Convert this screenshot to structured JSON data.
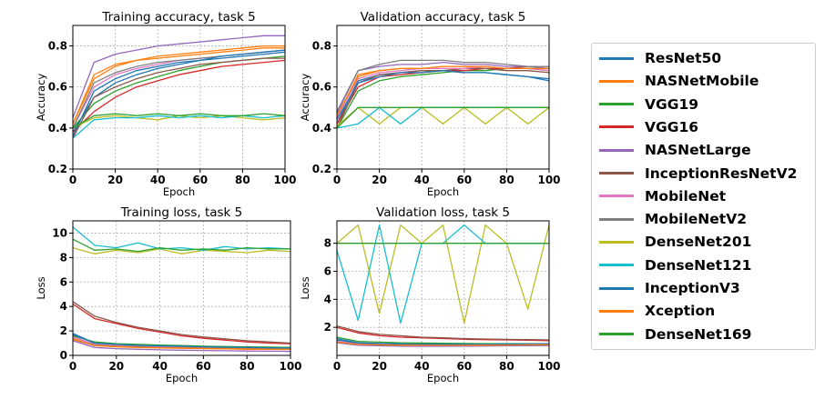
{
  "figure": {
    "colors": {
      "ResNet50": "#1f77b4",
      "NASNetMobile": "#ff7f0e",
      "VGG19": "#2ca02c",
      "VGG16": "#d62728",
      "NASNetLarge": "#9467bd",
      "InceptionResNetV2": "#8c564b",
      "MobileNet": "#e377c2",
      "MobileNetV2": "#7f7f7f",
      "DenseNet201": "#bcbd22",
      "DenseNet121": "#17becf",
      "InceptionV3": "#1f77b4",
      "Xception": "#ff7f0e",
      "DenseNet169": "#2ca02c"
    }
  },
  "legend": {
    "entries": [
      "ResNet50",
      "NASNetMobile",
      "VGG19",
      "VGG16",
      "NASNetLarge",
      "InceptionResNetV2",
      "MobileNet",
      "MobileNetV2",
      "DenseNet201",
      "DenseNet121",
      "InceptionV3",
      "Xception",
      "DenseNet169"
    ]
  },
  "chart_data": [
    {
      "type": "line",
      "title": "Training accuracy, task 5",
      "xlabel": "Epoch",
      "ylabel": "Accuracy",
      "xlim": [
        0,
        100
      ],
      "ylim": [
        0.2,
        0.9
      ],
      "xticks": [
        0,
        20,
        40,
        60,
        80,
        100
      ],
      "yticks": [
        0.2,
        0.4,
        0.6,
        0.8
      ],
      "grid": true,
      "x": [
        0,
        10,
        20,
        30,
        40,
        50,
        60,
        70,
        80,
        90,
        100
      ],
      "series": [
        {
          "name": "ResNet50",
          "values": [
            0.38,
            0.55,
            0.62,
            0.66,
            0.69,
            0.71,
            0.73,
            0.74,
            0.75,
            0.76,
            0.77
          ]
        },
        {
          "name": "NASNetMobile",
          "values": [
            0.42,
            0.64,
            0.7,
            0.73,
            0.75,
            0.76,
            0.77,
            0.78,
            0.79,
            0.8,
            0.8
          ]
        },
        {
          "name": "VGG19",
          "values": [
            0.4,
            0.52,
            0.58,
            0.62,
            0.65,
            0.68,
            0.7,
            0.72,
            0.73,
            0.74,
            0.75
          ]
        },
        {
          "name": "VGG16",
          "values": [
            0.38,
            0.48,
            0.55,
            0.6,
            0.63,
            0.66,
            0.68,
            0.7,
            0.71,
            0.72,
            0.73
          ]
        },
        {
          "name": "NASNetLarge",
          "values": [
            0.45,
            0.72,
            0.76,
            0.78,
            0.8,
            0.81,
            0.82,
            0.83,
            0.84,
            0.85,
            0.85
          ]
        },
        {
          "name": "InceptionResNetV2",
          "values": [
            0.35,
            0.55,
            0.6,
            0.64,
            0.67,
            0.69,
            0.71,
            0.72,
            0.73,
            0.74,
            0.74
          ]
        },
        {
          "name": "MobileNet",
          "values": [
            0.4,
            0.6,
            0.66,
            0.69,
            0.71,
            0.73,
            0.74,
            0.75,
            0.76,
            0.77,
            0.78
          ]
        },
        {
          "name": "MobileNetV2",
          "values": [
            0.4,
            0.62,
            0.67,
            0.7,
            0.72,
            0.73,
            0.74,
            0.75,
            0.76,
            0.77,
            0.78
          ]
        },
        {
          "name": "DenseNet201",
          "values": [
            0.4,
            0.45,
            0.46,
            0.45,
            0.44,
            0.46,
            0.45,
            0.46,
            0.45,
            0.44,
            0.45
          ]
        },
        {
          "name": "DenseNet121",
          "values": [
            0.35,
            0.44,
            0.45,
            0.45,
            0.46,
            0.45,
            0.46,
            0.45,
            0.46,
            0.45,
            0.46
          ]
        },
        {
          "name": "InceptionV3",
          "values": [
            0.36,
            0.58,
            0.64,
            0.68,
            0.7,
            0.72,
            0.73,
            0.75,
            0.76,
            0.77,
            0.78
          ]
        },
        {
          "name": "Xception",
          "values": [
            0.42,
            0.66,
            0.71,
            0.73,
            0.74,
            0.75,
            0.76,
            0.77,
            0.78,
            0.79,
            0.79
          ]
        },
        {
          "name": "DenseNet169",
          "values": [
            0.4,
            0.46,
            0.47,
            0.46,
            0.47,
            0.46,
            0.47,
            0.46,
            0.46,
            0.47,
            0.46
          ]
        }
      ]
    },
    {
      "type": "line",
      "title": "Validation accuracy, task 5",
      "xlabel": "Epoch",
      "ylabel": "Accuracy",
      "xlim": [
        0,
        100
      ],
      "ylim": [
        0.2,
        0.9
      ],
      "xticks": [
        0,
        20,
        40,
        60,
        80,
        100
      ],
      "yticks": [
        0.2,
        0.4,
        0.6,
        0.8
      ],
      "grid": true,
      "x": [
        0,
        10,
        20,
        30,
        40,
        50,
        60,
        70,
        80,
        90,
        100
      ],
      "series": [
        {
          "name": "ResNet50",
          "values": [
            0.42,
            0.63,
            0.66,
            0.67,
            0.68,
            0.68,
            0.67,
            0.67,
            0.66,
            0.65,
            0.63
          ]
        },
        {
          "name": "NASNetMobile",
          "values": [
            0.45,
            0.66,
            0.68,
            0.69,
            0.69,
            0.7,
            0.7,
            0.69,
            0.69,
            0.69,
            0.68
          ]
        },
        {
          "name": "VGG19",
          "values": [
            0.4,
            0.58,
            0.63,
            0.65,
            0.66,
            0.67,
            0.68,
            0.68,
            0.69,
            0.69,
            0.69
          ]
        },
        {
          "name": "VGG16",
          "values": [
            0.42,
            0.6,
            0.65,
            0.66,
            0.67,
            0.68,
            0.68,
            0.69,
            0.69,
            0.7,
            0.7
          ]
        },
        {
          "name": "NASNetLarge",
          "values": [
            0.48,
            0.68,
            0.7,
            0.71,
            0.71,
            0.72,
            0.71,
            0.71,
            0.7,
            0.7,
            0.69
          ]
        },
        {
          "name": "InceptionResNetV2",
          "values": [
            0.4,
            0.62,
            0.66,
            0.67,
            0.68,
            0.68,
            0.69,
            0.69,
            0.68,
            0.68,
            0.67
          ]
        },
        {
          "name": "MobileNet",
          "values": [
            0.45,
            0.64,
            0.67,
            0.68,
            0.69,
            0.69,
            0.69,
            0.7,
            0.69,
            0.69,
            0.68
          ]
        },
        {
          "name": "MobileNetV2",
          "values": [
            0.47,
            0.68,
            0.71,
            0.73,
            0.73,
            0.73,
            0.72,
            0.72,
            0.71,
            0.7,
            0.7
          ]
        },
        {
          "name": "DenseNet201",
          "values": [
            0.41,
            0.5,
            0.42,
            0.5,
            0.5,
            0.42,
            0.5,
            0.42,
            0.5,
            0.42,
            0.5
          ]
        },
        {
          "name": "DenseNet121",
          "values": [
            0.4,
            0.42,
            0.5,
            0.42,
            0.5,
            0.5,
            0.5,
            0.5,
            0.5,
            0.5,
            0.5
          ]
        },
        {
          "name": "InceptionV3",
          "values": [
            0.44,
            0.62,
            0.65,
            0.67,
            0.67,
            0.68,
            0.67,
            0.67,
            0.66,
            0.65,
            0.64
          ]
        },
        {
          "name": "Xception",
          "values": [
            0.46,
            0.65,
            0.68,
            0.69,
            0.69,
            0.7,
            0.7,
            0.7,
            0.69,
            0.69,
            0.69
          ]
        },
        {
          "name": "DenseNet169",
          "values": [
            0.4,
            0.5,
            0.5,
            0.5,
            0.5,
            0.5,
            0.5,
            0.5,
            0.5,
            0.5,
            0.5
          ]
        }
      ]
    },
    {
      "type": "line",
      "title": "Training loss, task 5",
      "xlabel": "Epoch",
      "ylabel": "Loss",
      "xlim": [
        0,
        100
      ],
      "ylim": [
        0,
        11
      ],
      "xticks": [
        0,
        20,
        40,
        60,
        80,
        100
      ],
      "yticks": [
        0,
        2,
        4,
        6,
        8,
        10
      ],
      "grid": true,
      "x": [
        0,
        10,
        20,
        30,
        40,
        50,
        60,
        70,
        80,
        90,
        100
      ],
      "series": [
        {
          "name": "ResNet50",
          "values": [
            1.8,
            1.0,
            0.9,
            0.85,
            0.8,
            0.75,
            0.72,
            0.7,
            0.68,
            0.65,
            0.62
          ]
        },
        {
          "name": "NASNetMobile",
          "values": [
            1.4,
            0.8,
            0.7,
            0.65,
            0.6,
            0.58,
            0.55,
            0.53,
            0.5,
            0.5,
            0.48
          ]
        },
        {
          "name": "VGG19",
          "values": [
            1.6,
            1.1,
            0.95,
            0.9,
            0.85,
            0.8,
            0.75,
            0.72,
            0.7,
            0.68,
            0.65
          ]
        },
        {
          "name": "VGG16",
          "values": [
            4.2,
            3.0,
            2.6,
            2.2,
            1.9,
            1.6,
            1.4,
            1.25,
            1.1,
            1.0,
            0.95
          ]
        },
        {
          "name": "NASNetLarge",
          "values": [
            1.2,
            0.65,
            0.55,
            0.5,
            0.45,
            0.42,
            0.4,
            0.38,
            0.36,
            0.34,
            0.33
          ]
        },
        {
          "name": "InceptionResNetV2",
          "values": [
            4.4,
            3.2,
            2.7,
            2.3,
            2.0,
            1.7,
            1.5,
            1.35,
            1.2,
            1.1,
            1.0
          ]
        },
        {
          "name": "MobileNet",
          "values": [
            1.5,
            0.9,
            0.8,
            0.75,
            0.7,
            0.66,
            0.63,
            0.6,
            0.58,
            0.56,
            0.54
          ]
        },
        {
          "name": "MobileNetV2",
          "values": [
            1.3,
            0.85,
            0.75,
            0.7,
            0.66,
            0.63,
            0.6,
            0.58,
            0.56,
            0.54,
            0.52
          ]
        },
        {
          "name": "DenseNet201",
          "values": [
            8.8,
            8.3,
            8.6,
            8.4,
            8.7,
            8.3,
            8.6,
            8.5,
            8.4,
            8.6,
            8.5
          ]
        },
        {
          "name": "DenseNet121",
          "values": [
            10.5,
            9.0,
            8.8,
            9.2,
            8.7,
            8.8,
            8.6,
            8.9,
            8.7,
            8.8,
            8.7
          ]
        },
        {
          "name": "InceptionV3",
          "values": [
            1.7,
            1.0,
            0.9,
            0.82,
            0.78,
            0.74,
            0.7,
            0.67,
            0.65,
            0.62,
            0.6
          ]
        },
        {
          "name": "Xception",
          "values": [
            1.3,
            0.8,
            0.72,
            0.66,
            0.62,
            0.6,
            0.57,
            0.55,
            0.53,
            0.51,
            0.5
          ]
        },
        {
          "name": "DenseNet169",
          "values": [
            9.5,
            8.6,
            8.7,
            8.5,
            8.8,
            8.6,
            8.7,
            8.6,
            8.8,
            8.7,
            8.7
          ]
        }
      ]
    },
    {
      "type": "line",
      "title": "Validation loss, task 5",
      "xlabel": "Epoch",
      "ylabel": "Loss",
      "xlim": [
        0,
        100
      ],
      "ylim": [
        0,
        9.6
      ],
      "xticks": [
        0,
        20,
        40,
        60,
        80,
        100
      ],
      "yticks": [
        2,
        4,
        6,
        8
      ],
      "grid": true,
      "x": [
        0,
        10,
        20,
        30,
        40,
        50,
        60,
        70,
        80,
        90,
        100
      ],
      "series": [
        {
          "name": "ResNet50",
          "values": [
            1.2,
            0.9,
            0.85,
            0.82,
            0.8,
            0.8,
            0.79,
            0.79,
            0.8,
            0.81,
            0.82
          ]
        },
        {
          "name": "NASNetMobile",
          "values": [
            1.0,
            0.8,
            0.76,
            0.74,
            0.73,
            0.72,
            0.72,
            0.72,
            0.73,
            0.74,
            0.75
          ]
        },
        {
          "name": "VGG19",
          "values": [
            1.3,
            1.0,
            0.95,
            0.9,
            0.88,
            0.86,
            0.85,
            0.84,
            0.83,
            0.83,
            0.82
          ]
        },
        {
          "name": "VGG16",
          "values": [
            2.0,
            1.6,
            1.4,
            1.3,
            1.25,
            1.2,
            1.15,
            1.12,
            1.1,
            1.08,
            1.05
          ]
        },
        {
          "name": "NASNetLarge",
          "values": [
            0.9,
            0.72,
            0.68,
            0.66,
            0.65,
            0.65,
            0.66,
            0.67,
            0.68,
            0.69,
            0.7
          ]
        },
        {
          "name": "InceptionResNetV2",
          "values": [
            2.1,
            1.7,
            1.5,
            1.4,
            1.3,
            1.25,
            1.2,
            1.17,
            1.14,
            1.12,
            1.1
          ]
        },
        {
          "name": "MobileNet",
          "values": [
            1.0,
            0.82,
            0.78,
            0.76,
            0.75,
            0.75,
            0.75,
            0.76,
            0.77,
            0.78,
            0.79
          ]
        },
        {
          "name": "MobileNetV2",
          "values": [
            0.95,
            0.78,
            0.74,
            0.72,
            0.72,
            0.72,
            0.73,
            0.74,
            0.75,
            0.76,
            0.77
          ]
        },
        {
          "name": "DenseNet201",
          "values": [
            8.0,
            9.3,
            3.0,
            9.3,
            8.0,
            9.3,
            2.3,
            9.3,
            8.0,
            3.3,
            9.3
          ]
        },
        {
          "name": "DenseNet121",
          "values": [
            7.5,
            2.5,
            9.3,
            2.3,
            8.0,
            8.0,
            9.3,
            8.0,
            8.0,
            8.0,
            8.0
          ]
        },
        {
          "name": "InceptionV3",
          "values": [
            1.1,
            0.88,
            0.84,
            0.81,
            0.8,
            0.79,
            0.79,
            0.8,
            0.81,
            0.82,
            0.83
          ]
        },
        {
          "name": "Xception",
          "values": [
            0.95,
            0.78,
            0.75,
            0.73,
            0.72,
            0.72,
            0.72,
            0.73,
            0.74,
            0.75,
            0.76
          ]
        },
        {
          "name": "DenseNet169",
          "values": [
            8.0,
            8.0,
            8.0,
            8.0,
            8.0,
            8.0,
            8.0,
            8.0,
            8.0,
            8.0,
            8.0
          ]
        }
      ]
    }
  ]
}
